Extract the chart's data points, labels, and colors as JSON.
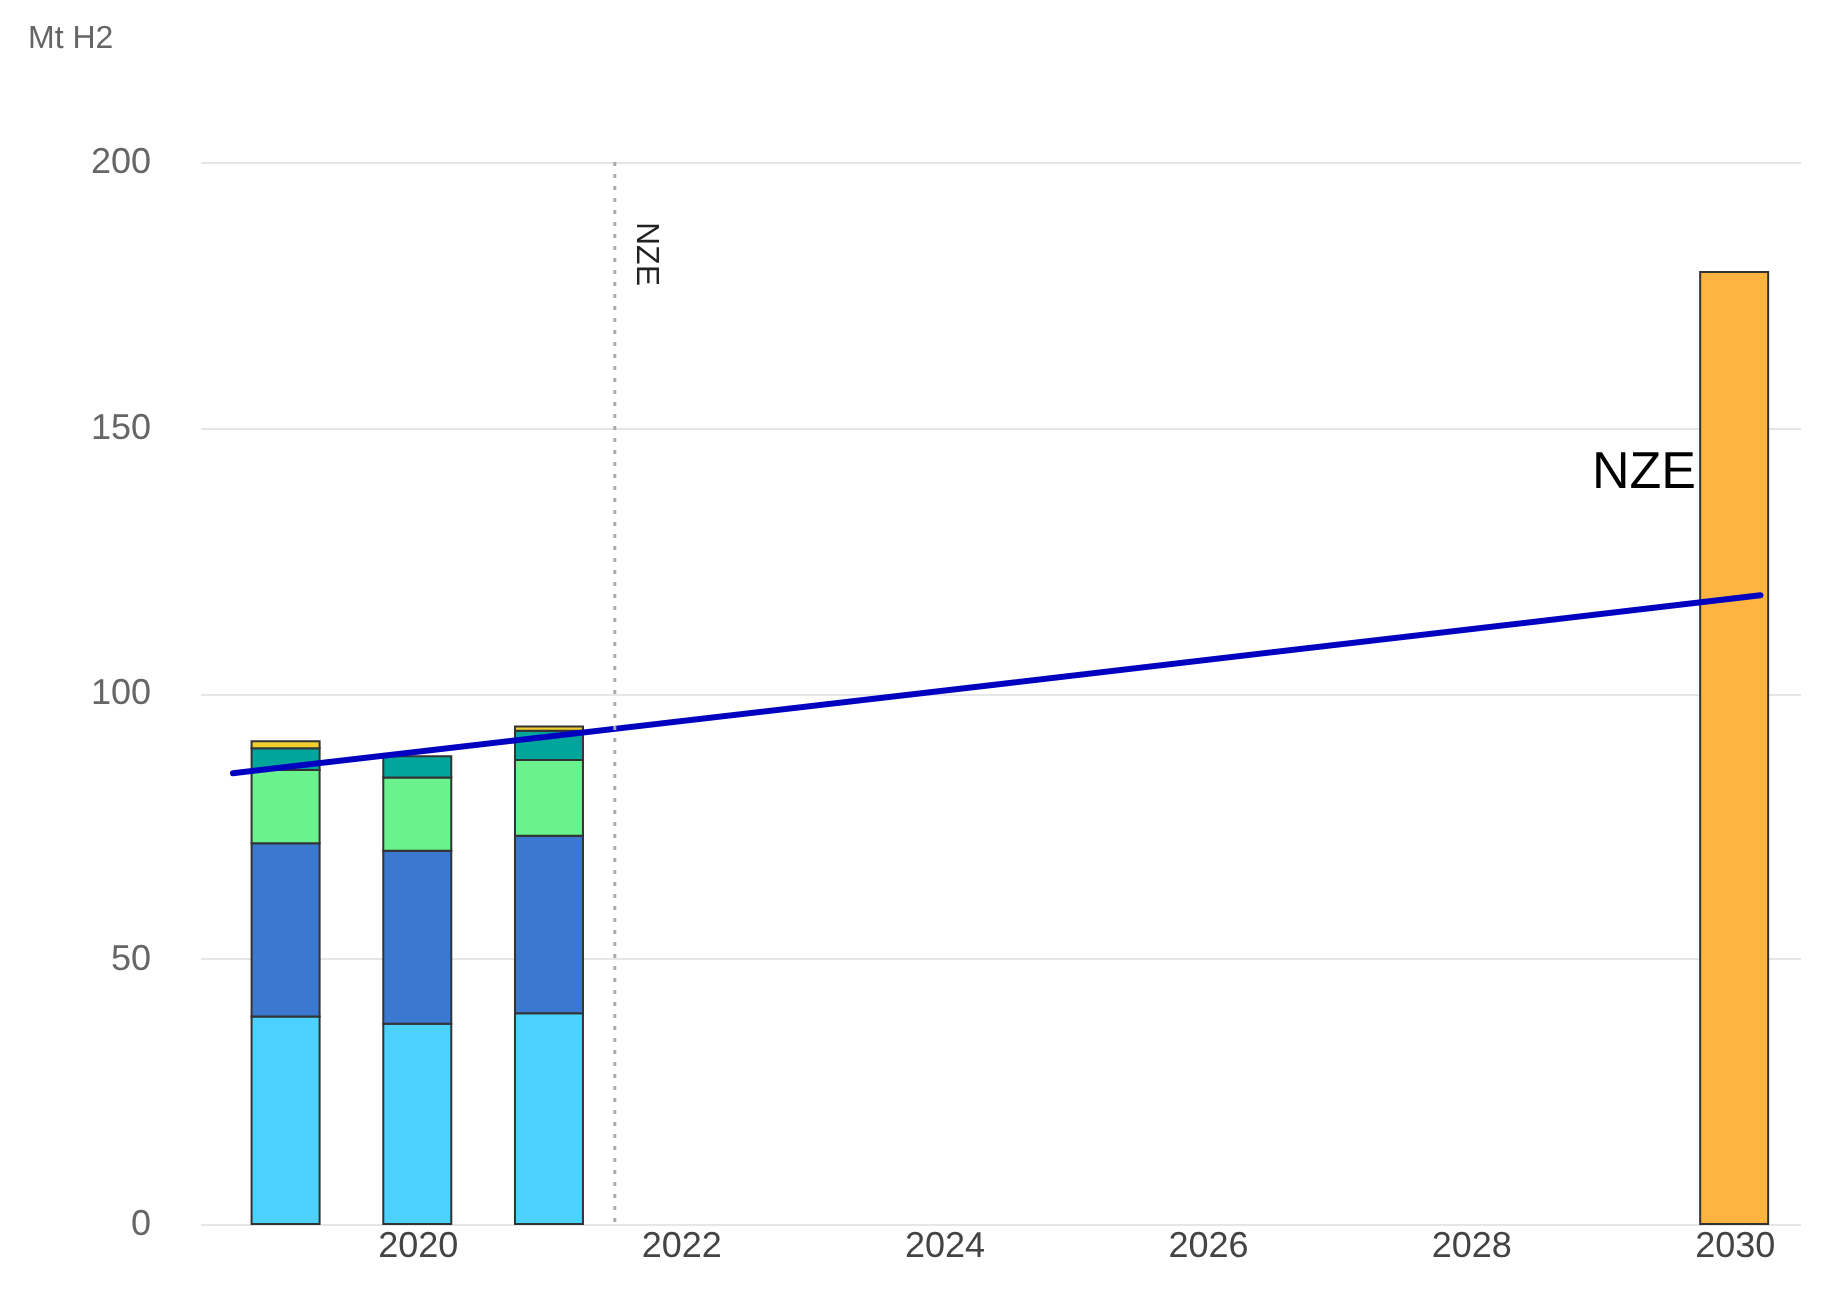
{
  "chart_data": {
    "type": "bar",
    "stacked": true,
    "ylabel": "Mt H2",
    "x": [
      2019,
      2020,
      2021,
      2030
    ],
    "series": [
      {
        "color": "#4dd2ff",
        "values": [
          39.1,
          37.7,
          39.7,
          null
        ]
      },
      {
        "color": "#3b78d0",
        "values": [
          32.6,
          32.6,
          33.4,
          null
        ]
      },
      {
        "color": "#6af28f",
        "values": [
          13.8,
          13.8,
          14.3,
          null
        ]
      },
      {
        "color": "#00a69c",
        "values": [
          4.1,
          4.0,
          5.5,
          null
        ]
      },
      {
        "color": "#f0d030",
        "values": [
          1.3,
          null,
          0.8,
          null
        ]
      },
      {
        "color": "#ffb340",
        "values": [
          null,
          null,
          null,
          179.3
        ]
      },
      {
        "type": "line",
        "color": "#0000c0",
        "x": [
          2018.6,
          2024.4,
          2030.2
        ],
        "values": [
          84.9,
          101.6,
          118.4
        ]
      }
    ],
    "xlim": [
      2018.35,
      2030.5
    ],
    "xticks": [
      2020,
      2022,
      2024,
      2026,
      2028,
      2030
    ],
    "ylim": [
      0,
      200
    ],
    "yticks": [
      0,
      50,
      100,
      150,
      200
    ],
    "grid": "y",
    "ref_lines": [
      {
        "axis": "x",
        "value": 2021.5,
        "label": "NZE",
        "color": "#aaaaaa",
        "line_style": "dotted"
      }
    ],
    "annotations": [
      "NZE"
    ]
  }
}
